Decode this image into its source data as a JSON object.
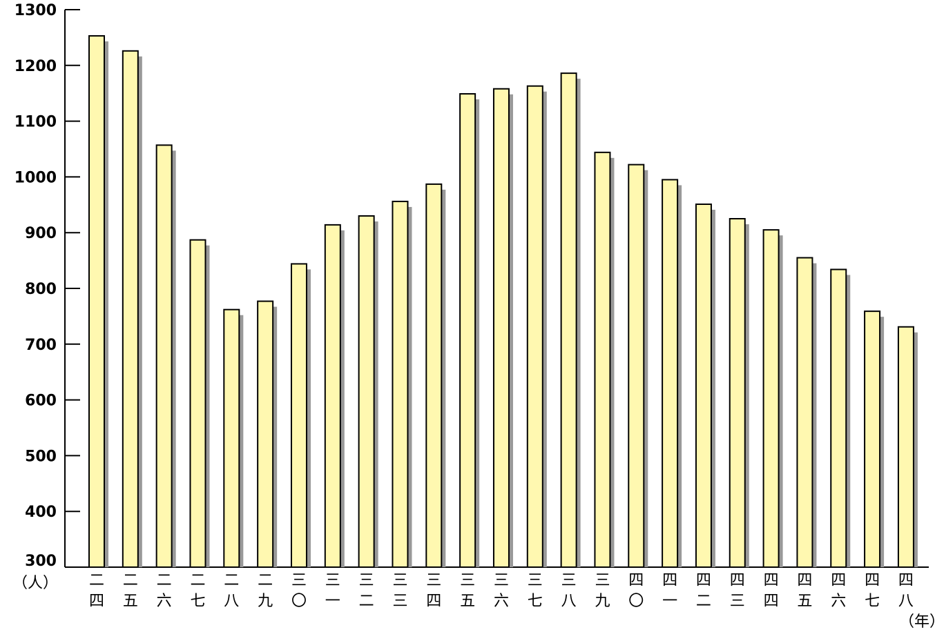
{
  "chart_data": {
    "type": "bar",
    "title": "",
    "xlabel": "",
    "ylabel": "",
    "y_unit_label": "（人）",
    "x_unit_label": "（年）",
    "ylim": [
      300,
      1300
    ],
    "yticks": [
      300,
      400,
      500,
      600,
      700,
      800,
      900,
      1000,
      1100,
      1200,
      1300
    ],
    "grid": false,
    "bar_color": "#fff8b0",
    "shadow_color": "#999999",
    "categories": [
      [
        "二",
        "四"
      ],
      [
        "二",
        "五"
      ],
      [
        "二",
        "六"
      ],
      [
        "二",
        "七"
      ],
      [
        "二",
        "八"
      ],
      [
        "二",
        "九"
      ],
      [
        "三",
        "〇"
      ],
      [
        "三",
        "一"
      ],
      [
        "三",
        "二"
      ],
      [
        "三",
        "三"
      ],
      [
        "三",
        "四"
      ],
      [
        "三",
        "五"
      ],
      [
        "三",
        "六"
      ],
      [
        "三",
        "七"
      ],
      [
        "三",
        "八"
      ],
      [
        "三",
        "九"
      ],
      [
        "四",
        "〇"
      ],
      [
        "四",
        "一"
      ],
      [
        "四",
        "二"
      ],
      [
        "四",
        "三"
      ],
      [
        "四",
        "四"
      ],
      [
        "四",
        "五"
      ],
      [
        "四",
        "六"
      ],
      [
        "四",
        "七"
      ],
      [
        "四",
        "八"
      ]
    ],
    "values": [
      1253,
      1226,
      1057,
      887,
      762,
      777,
      844,
      914,
      930,
      956,
      987,
      1149,
      1158,
      1163,
      1186,
      1044,
      1022,
      995,
      951,
      925,
      905,
      855,
      834,
      759,
      731
    ]
  }
}
